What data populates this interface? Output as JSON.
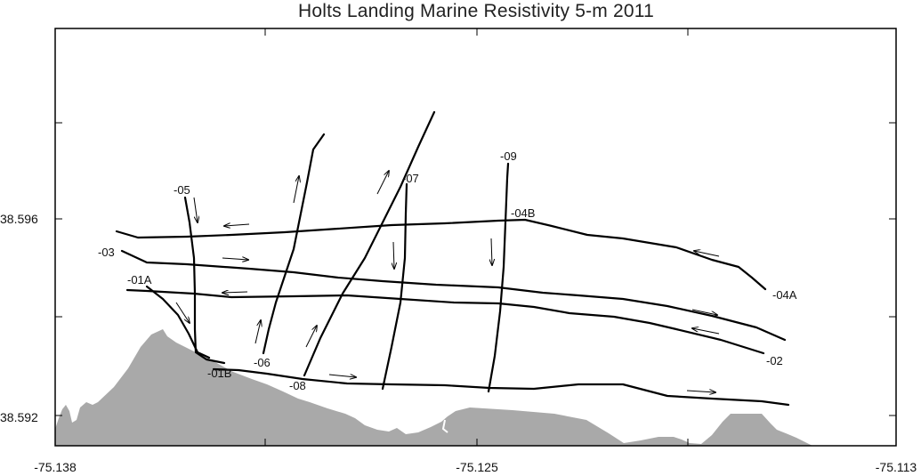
{
  "title": "Holts Landing  Marine Resistivity  5-m  2011",
  "axes": {
    "y_ticks": [
      {
        "value": 38.596,
        "label": "38.596"
      },
      {
        "value": 38.592,
        "label": "38.592"
      }
    ],
    "x_ticks": [
      {
        "value": -75.138,
        "label": "-75.138"
      },
      {
        "value": -75.125,
        "label": "-75.125"
      },
      {
        "value": -75.113,
        "label": "-75.113"
      }
    ],
    "xlim": [
      -75.138,
      -75.113
    ],
    "ylim": [
      38.5916,
      38.6001
    ]
  },
  "colors": {
    "land": "#a9a9a9",
    "line": "#000000",
    "frame": "#000000"
  },
  "lines": [
    {
      "id": "05",
      "label": "-05"
    },
    {
      "id": "04B",
      "label": "-04B"
    },
    {
      "id": "04A",
      "label": "-04A"
    },
    {
      "id": "03",
      "label": "-03"
    },
    {
      "id": "01A",
      "label": "-01A"
    },
    {
      "id": "02",
      "label": "-02"
    },
    {
      "id": "01B",
      "label": "-01B"
    },
    {
      "id": "06",
      "label": "-06"
    },
    {
      "id": "08",
      "label": "-08"
    },
    {
      "id": "07",
      "label": "-07"
    },
    {
      "id": "09",
      "label": "-09"
    }
  ]
}
